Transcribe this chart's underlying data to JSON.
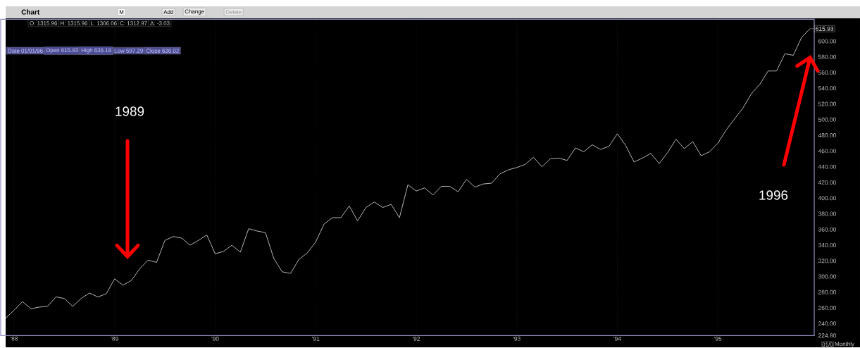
{
  "chart_data": {
    "type": "line",
    "x": [
      "1987-12",
      "1988-01",
      "1988-02",
      "1988-03",
      "1988-04",
      "1988-05",
      "1988-06",
      "1988-07",
      "1988-08",
      "1988-09",
      "1988-10",
      "1988-11",
      "1988-12",
      "1989-01",
      "1989-02",
      "1989-03",
      "1989-04",
      "1989-05",
      "1989-06",
      "1989-07",
      "1989-08",
      "1989-09",
      "1989-10",
      "1989-11",
      "1989-12",
      "1990-01",
      "1990-02",
      "1990-03",
      "1990-04",
      "1990-05",
      "1990-06",
      "1990-07",
      "1990-08",
      "1990-09",
      "1990-10",
      "1990-11",
      "1990-12",
      "1991-01",
      "1991-02",
      "1991-03",
      "1991-04",
      "1991-05",
      "1991-06",
      "1991-07",
      "1991-08",
      "1991-09",
      "1991-10",
      "1991-11",
      "1991-12",
      "1992-01",
      "1992-02",
      "1992-03",
      "1992-04",
      "1992-05",
      "1992-06",
      "1992-07",
      "1992-08",
      "1992-09",
      "1992-10",
      "1992-11",
      "1992-12",
      "1993-01",
      "1993-02",
      "1993-03",
      "1993-04",
      "1993-05",
      "1993-06",
      "1993-07",
      "1993-08",
      "1993-09",
      "1993-10",
      "1993-11",
      "1993-12",
      "1994-01",
      "1994-02",
      "1994-03",
      "1994-04",
      "1994-05",
      "1994-06",
      "1994-07",
      "1994-08",
      "1994-09",
      "1994-10",
      "1994-11",
      "1994-12",
      "1995-01",
      "1995-02",
      "1995-03",
      "1995-04",
      "1995-05",
      "1995-06",
      "1995-07",
      "1995-08",
      "1995-09",
      "1995-10",
      "1995-11",
      "1995-12"
    ],
    "series": [
      {
        "color": "#c8c8c8",
        "values": [
          247,
          257,
          268,
          259,
          261,
          262,
          274,
          272,
          262,
          272,
          279,
          274,
          278,
          297,
          289,
          295,
          310,
          321,
          318,
          346,
          351,
          349,
          340,
          346,
          353,
          329,
          332,
          340,
          331,
          361,
          358,
          356,
          323,
          306,
          304,
          322,
          330,
          344,
          367,
          375,
          375,
          390,
          371,
          388,
          395,
          388,
          392,
          375,
          417,
          409,
          413,
          404,
          415,
          415,
          408,
          424,
          414,
          418,
          419,
          431,
          436,
          439,
          443,
          452,
          440,
          450,
          451,
          448,
          464,
          459,
          468,
          462,
          466,
          482,
          467,
          446,
          451,
          457,
          444,
          458,
          475,
          463,
          472,
          454,
          459,
          470,
          487,
          501,
          515,
          533,
          545,
          562,
          562,
          584,
          582,
          605,
          615.93
        ]
      }
    ],
    "xlim": [
      "1987-11-13",
      "1995-12-16"
    ],
    "xticks": [
      {
        "value": "1988-01",
        "label": "'88"
      },
      {
        "value": "1989-01",
        "label": "'89"
      },
      {
        "value": "1990-01",
        "label": "'90"
      },
      {
        "value": "1991-01",
        "label": "'91"
      },
      {
        "value": "1992-01",
        "label": "'92"
      },
      {
        "value": "1993-01",
        "label": "'93"
      },
      {
        "value": "1994-01",
        "label": "'94"
      },
      {
        "value": "1995-01",
        "label": "'95"
      }
    ],
    "ylim": [
      224.8,
      628
    ],
    "yticks": [
      {
        "value": 224.8,
        "label": "224.80"
      },
      {
        "value": 240,
        "label": "240.00"
      },
      {
        "value": 260,
        "label": "260.00"
      },
      {
        "value": 280,
        "label": "280.00"
      },
      {
        "value": 300,
        "label": "300.00"
      },
      {
        "value": 320,
        "label": "320.00"
      },
      {
        "value": 340,
        "label": "340.00"
      },
      {
        "value": 360,
        "label": "360.00"
      },
      {
        "value": 380,
        "label": "380.00"
      },
      {
        "value": 400,
        "label": "400.00"
      },
      {
        "value": 420,
        "label": "420.00"
      },
      {
        "value": 440,
        "label": "440.00"
      },
      {
        "value": 460,
        "label": "460.00"
      },
      {
        "value": 480,
        "label": "480.00"
      },
      {
        "value": 500,
        "label": "500.00"
      },
      {
        "value": 520,
        "label": "520.00"
      },
      {
        "value": 540,
        "label": "540.00"
      },
      {
        "value": 560,
        "label": "560.00"
      },
      {
        "value": 580,
        "label": "580.00"
      },
      {
        "value": 600,
        "label": "600.00"
      }
    ],
    "grid": "x",
    "annotations": [
      "Chart",
      "M",
      "Add",
      "Change",
      "Delete",
      "O: 1315.96",
      "H: 1315.96",
      "L: 1306.06",
      "C: 1312.97",
      "Δ: -3.03",
      "Date 01/01/96",
      "Open 615.93",
      "High 636.18",
      "Low 597.29",
      "Close 636.02",
      "1989",
      "1996",
      {
        "text": "615.93",
        "x": "1995-12",
        "y": 615.93
      },
      "01/0",
      "Monthly"
    ]
  }
}
